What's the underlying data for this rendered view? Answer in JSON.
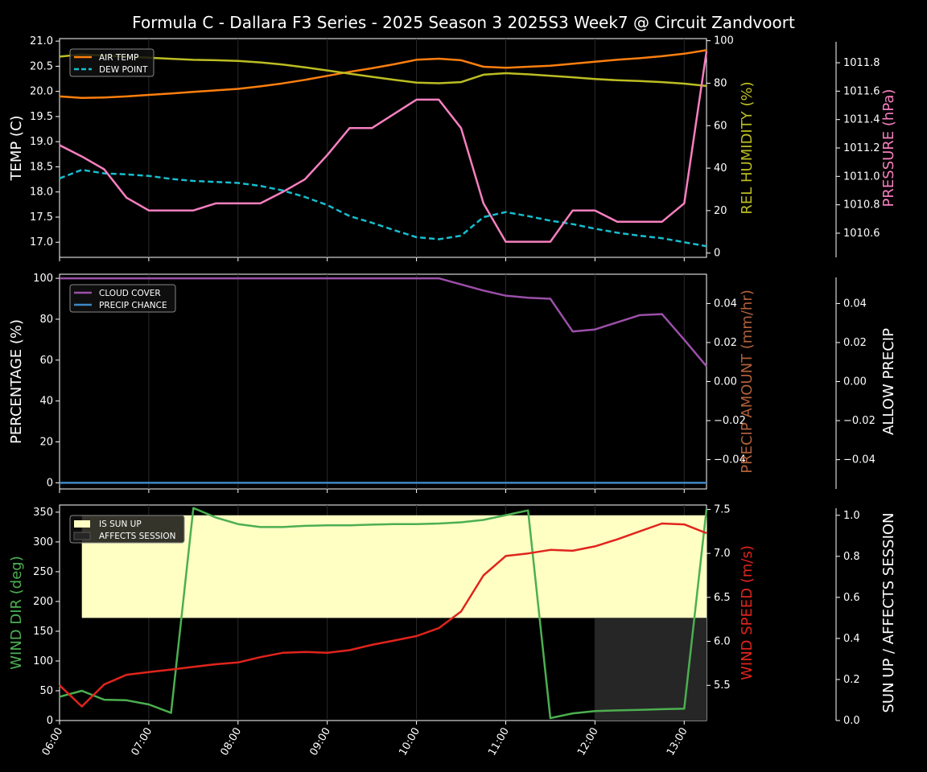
{
  "title": "Formula C -  Dallara F3 Series - 2025 Season 3 2025S3 Week7 @ Circuit Zandvoort",
  "x_ticks": [
    "06:00",
    "07:00",
    "08:00",
    "09:00",
    "10:00",
    "11:00",
    "12:00",
    "13:00"
  ],
  "colors": {
    "air_temp": "#ff7f0e",
    "dew_point": "#17becf",
    "humidity": "#bcbd22",
    "pressure": "#f77fbf",
    "cloud": "#9b4fa8",
    "precip_chance": "#3f88c5",
    "precip_amount_label": "#b0603a",
    "wind_dir": "#4caf50",
    "wind_speed": "#e0241c",
    "sun_up": "#ffffc4",
    "affects": "#262626"
  },
  "chart_data": [
    {
      "type": "line",
      "panel": "temperature",
      "x_hours": [
        6.0,
        6.25,
        6.5,
        6.75,
        7.0,
        7.25,
        7.5,
        7.75,
        8.0,
        8.25,
        8.5,
        8.75,
        9.0,
        9.25,
        9.5,
        9.75,
        10.0,
        10.25,
        10.5,
        10.75,
        11.0,
        11.25,
        11.5,
        11.75,
        12.0,
        12.25,
        12.5,
        12.75,
        13.0,
        13.25
      ],
      "y_left_label": "TEMP (C)",
      "y_left_lim": [
        16.7,
        21.05
      ],
      "y_left_ticks": [
        "17.0",
        "17.5",
        "18.0",
        "18.5",
        "19.0",
        "19.5",
        "20.0",
        "20.5",
        "21.0"
      ],
      "y_right_label": "REL HUMIDITY (%)",
      "y_right_lim": [
        -2,
        101
      ],
      "y_right_ticks": [
        "0",
        "20",
        "40",
        "60",
        "80",
        "100"
      ],
      "y_far_label": "PRESSURE (hPa)",
      "y_far_lim": [
        1010.43,
        1011.97
      ],
      "y_far_ticks": [
        "1010.6",
        "1010.8",
        "1011.0",
        "1011.2",
        "1011.4",
        "1011.6",
        "1011.8"
      ],
      "legend": [
        "AIR TEMP",
        "DEW POINT"
      ],
      "series": [
        {
          "name": "AIR TEMP",
          "axis": "left",
          "values": [
            19.9,
            19.87,
            19.88,
            19.9,
            19.93,
            19.96,
            19.99,
            20.02,
            20.05,
            20.1,
            20.16,
            20.23,
            20.31,
            20.39,
            20.46,
            20.54,
            20.63,
            20.65,
            20.62,
            20.49,
            20.47,
            20.49,
            20.51,
            20.55,
            20.59,
            20.63,
            20.66,
            20.7,
            20.75,
            20.82
          ]
        },
        {
          "name": "DEW POINT",
          "axis": "left",
          "values": [
            18.27,
            18.44,
            18.37,
            18.35,
            18.32,
            18.26,
            18.22,
            18.2,
            18.18,
            18.12,
            18.03,
            17.9,
            17.74,
            17.52,
            17.39,
            17.24,
            17.1,
            17.06,
            17.13,
            17.5,
            17.6,
            17.52,
            17.43,
            17.36,
            17.27,
            17.19,
            17.13,
            17.08,
            17.0,
            16.92
          ]
        },
        {
          "name": "REL HUMIDITY",
          "axis": "right",
          "values": [
            92.5,
            93.5,
            93,
            92.5,
            92,
            91.5,
            91,
            90.8,
            90.5,
            89.8,
            88.8,
            87.5,
            86,
            84.5,
            83,
            81.6,
            80.3,
            80,
            80.5,
            84,
            84.7,
            84.2,
            83.5,
            82.8,
            82,
            81.4,
            81,
            80.5,
            79.8,
            78.7
          ]
        },
        {
          "name": "PRESSURE",
          "axis": "far",
          "values": [
            1011.22,
            1011.14,
            1011.05,
            1010.85,
            1010.76,
            1010.76,
            1010.76,
            1010.81,
            1010.81,
            1010.81,
            1010.89,
            1010.98,
            1011.15,
            1011.34,
            1011.34,
            1011.44,
            1011.54,
            1011.54,
            1011.34,
            1010.81,
            1010.54,
            1010.54,
            1010.54,
            1010.76,
            1010.76,
            1010.68,
            1010.68,
            1010.68,
            1010.81,
            1011.88
          ]
        }
      ]
    },
    {
      "type": "line",
      "panel": "clouds",
      "x_hours": [
        6.0,
        6.25,
        6.5,
        6.75,
        7.0,
        7.25,
        7.5,
        7.75,
        8.0,
        8.25,
        8.5,
        8.75,
        9.0,
        9.25,
        9.5,
        9.75,
        10.0,
        10.25,
        10.5,
        10.75,
        11.0,
        11.25,
        11.5,
        11.75,
        12.0,
        12.25,
        12.5,
        12.75,
        13.0,
        13.25
      ],
      "y_left_label": "PERCENTAGE (%)",
      "y_left_lim": [
        -3,
        102
      ],
      "y_left_ticks": [
        "0",
        "20",
        "40",
        "60",
        "80",
        "100"
      ],
      "y_right_label": "PRECIP AMOUNT (mm/hr)",
      "y_right_lim": [
        -0.055,
        0.055
      ],
      "y_right_ticks": [
        "−0.04",
        "−0.02",
        "0.00",
        "0.02",
        "0.04"
      ],
      "y_far_label": "ALLOW PRECIP",
      "y_far_lim": [
        -0.055,
        0.055
      ],
      "y_far_ticks": [
        "−0.04",
        "−0.02",
        "0.00",
        "0.02",
        "0.04"
      ],
      "legend": [
        "CLOUD COVER",
        "PRECIP CHANCE"
      ],
      "series": [
        {
          "name": "CLOUD COVER",
          "axis": "left",
          "values": [
            100,
            100,
            100,
            100,
            100,
            100,
            100,
            100,
            100,
            100,
            100,
            100,
            100,
            100,
            100,
            100,
            100,
            100,
            97,
            94,
            91.5,
            90.5,
            90,
            74,
            75,
            78.5,
            82,
            82.5,
            70,
            57
          ]
        },
        {
          "name": "PRECIP CHANCE",
          "axis": "left",
          "values": [
            0,
            0,
            0,
            0,
            0,
            0,
            0,
            0,
            0,
            0,
            0,
            0,
            0,
            0,
            0,
            0,
            0,
            0,
            0,
            0,
            0,
            0,
            0,
            0,
            0,
            0,
            0,
            0,
            0,
            0
          ]
        }
      ]
    },
    {
      "type": "line",
      "panel": "wind",
      "x_hours": [
        6.0,
        6.25,
        6.5,
        6.75,
        7.0,
        7.25,
        7.5,
        7.75,
        8.0,
        8.25,
        8.5,
        8.75,
        9.0,
        9.25,
        9.5,
        9.75,
        10.0,
        10.25,
        10.5,
        10.75,
        11.0,
        11.25,
        11.5,
        11.75,
        12.0,
        12.25,
        12.5,
        12.75,
        13.0,
        13.25
      ],
      "y_left_label": "WIND DIR (deg)",
      "y_left_lim": [
        0,
        362
      ],
      "y_left_ticks": [
        "0",
        "50",
        "100",
        "150",
        "200",
        "250",
        "300",
        "350"
      ],
      "y_right_label": "WIND SPEED (m/s)",
      "y_right_lim": [
        5.1,
        7.55
      ],
      "y_right_ticks": [
        "5.5",
        "6.0",
        "6.5",
        "7.0",
        "7.5"
      ],
      "y_far_label": "SUN UP / AFFECTS SESSION",
      "y_far_lim": [
        0,
        1.05
      ],
      "y_far_ticks": [
        "0.0",
        "0.2",
        "0.4",
        "0.6",
        "0.8",
        "1.0"
      ],
      "legend": [
        "IS SUN UP",
        "AFFECTS SESSION"
      ],
      "sun_up": {
        "start": 6.25,
        "end": 13.25,
        "value": 1.0
      },
      "affects_session": {
        "start": 12.0,
        "end": 13.25,
        "value": 0.5
      },
      "series": [
        {
          "name": "WIND DIR",
          "axis": "left",
          "values": [
            40,
            50,
            35,
            34,
            27,
            13,
            357,
            341,
            330,
            325,
            325,
            327,
            328,
            328,
            329,
            330,
            330,
            331,
            333,
            337,
            345,
            353,
            4,
            12,
            16,
            17,
            18,
            19,
            20,
            355
          ]
        },
        {
          "name": "WIND SPEED",
          "axis": "right",
          "values": [
            5.5,
            5.26,
            5.51,
            5.62,
            5.65,
            5.68,
            5.71,
            5.74,
            5.76,
            5.82,
            5.87,
            5.88,
            5.87,
            5.9,
            5.96,
            6.01,
            6.06,
            6.15,
            6.34,
            6.75,
            6.97,
            7.0,
            7.04,
            7.03,
            7.08,
            7.16,
            7.25,
            7.34,
            7.33,
            7.23
          ]
        }
      ]
    }
  ]
}
